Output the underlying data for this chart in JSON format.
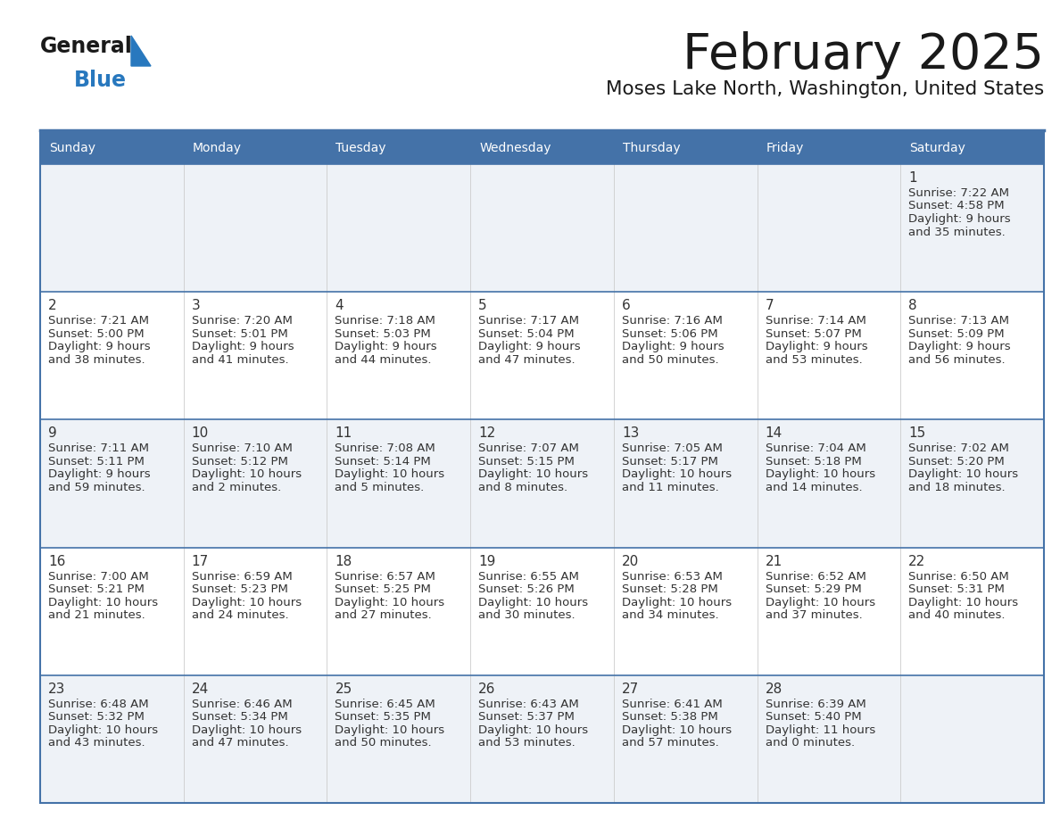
{
  "title": "February 2025",
  "subtitle": "Moses Lake North, Washington, United States",
  "header_bg": "#4472a8",
  "header_text_color": "#ffffff",
  "row_bg_odd": "#eef2f7",
  "row_bg_even": "#ffffff",
  "border_color": "#4472a8",
  "text_color": "#333333",
  "day_number_color": "#333333",
  "days_of_week": [
    "Sunday",
    "Monday",
    "Tuesday",
    "Wednesday",
    "Thursday",
    "Friday",
    "Saturday"
  ],
  "calendar": [
    [
      null,
      null,
      null,
      null,
      null,
      null,
      1
    ],
    [
      2,
      3,
      4,
      5,
      6,
      7,
      8
    ],
    [
      9,
      10,
      11,
      12,
      13,
      14,
      15
    ],
    [
      16,
      17,
      18,
      19,
      20,
      21,
      22
    ],
    [
      23,
      24,
      25,
      26,
      27,
      28,
      null
    ]
  ],
  "day_data": {
    "1": {
      "sunrise": "7:22 AM",
      "sunset": "4:58 PM",
      "daylight_line1": "Daylight: 9 hours",
      "daylight_line2": "and 35 minutes."
    },
    "2": {
      "sunrise": "7:21 AM",
      "sunset": "5:00 PM",
      "daylight_line1": "Daylight: 9 hours",
      "daylight_line2": "and 38 minutes."
    },
    "3": {
      "sunrise": "7:20 AM",
      "sunset": "5:01 PM",
      "daylight_line1": "Daylight: 9 hours",
      "daylight_line2": "and 41 minutes."
    },
    "4": {
      "sunrise": "7:18 AM",
      "sunset": "5:03 PM",
      "daylight_line1": "Daylight: 9 hours",
      "daylight_line2": "and 44 minutes."
    },
    "5": {
      "sunrise": "7:17 AM",
      "sunset": "5:04 PM",
      "daylight_line1": "Daylight: 9 hours",
      "daylight_line2": "and 47 minutes."
    },
    "6": {
      "sunrise": "7:16 AM",
      "sunset": "5:06 PM",
      "daylight_line1": "Daylight: 9 hours",
      "daylight_line2": "and 50 minutes."
    },
    "7": {
      "sunrise": "7:14 AM",
      "sunset": "5:07 PM",
      "daylight_line1": "Daylight: 9 hours",
      "daylight_line2": "and 53 minutes."
    },
    "8": {
      "sunrise": "7:13 AM",
      "sunset": "5:09 PM",
      "daylight_line1": "Daylight: 9 hours",
      "daylight_line2": "and 56 minutes."
    },
    "9": {
      "sunrise": "7:11 AM",
      "sunset": "5:11 PM",
      "daylight_line1": "Daylight: 9 hours",
      "daylight_line2": "and 59 minutes."
    },
    "10": {
      "sunrise": "7:10 AM",
      "sunset": "5:12 PM",
      "daylight_line1": "Daylight: 10 hours",
      "daylight_line2": "and 2 minutes."
    },
    "11": {
      "sunrise": "7:08 AM",
      "sunset": "5:14 PM",
      "daylight_line1": "Daylight: 10 hours",
      "daylight_line2": "and 5 minutes."
    },
    "12": {
      "sunrise": "7:07 AM",
      "sunset": "5:15 PM",
      "daylight_line1": "Daylight: 10 hours",
      "daylight_line2": "and 8 minutes."
    },
    "13": {
      "sunrise": "7:05 AM",
      "sunset": "5:17 PM",
      "daylight_line1": "Daylight: 10 hours",
      "daylight_line2": "and 11 minutes."
    },
    "14": {
      "sunrise": "7:04 AM",
      "sunset": "5:18 PM",
      "daylight_line1": "Daylight: 10 hours",
      "daylight_line2": "and 14 minutes."
    },
    "15": {
      "sunrise": "7:02 AM",
      "sunset": "5:20 PM",
      "daylight_line1": "Daylight: 10 hours",
      "daylight_line2": "and 18 minutes."
    },
    "16": {
      "sunrise": "7:00 AM",
      "sunset": "5:21 PM",
      "daylight_line1": "Daylight: 10 hours",
      "daylight_line2": "and 21 minutes."
    },
    "17": {
      "sunrise": "6:59 AM",
      "sunset": "5:23 PM",
      "daylight_line1": "Daylight: 10 hours",
      "daylight_line2": "and 24 minutes."
    },
    "18": {
      "sunrise": "6:57 AM",
      "sunset": "5:25 PM",
      "daylight_line1": "Daylight: 10 hours",
      "daylight_line2": "and 27 minutes."
    },
    "19": {
      "sunrise": "6:55 AM",
      "sunset": "5:26 PM",
      "daylight_line1": "Daylight: 10 hours",
      "daylight_line2": "and 30 minutes."
    },
    "20": {
      "sunrise": "6:53 AM",
      "sunset": "5:28 PM",
      "daylight_line1": "Daylight: 10 hours",
      "daylight_line2": "and 34 minutes."
    },
    "21": {
      "sunrise": "6:52 AM",
      "sunset": "5:29 PM",
      "daylight_line1": "Daylight: 10 hours",
      "daylight_line2": "and 37 minutes."
    },
    "22": {
      "sunrise": "6:50 AM",
      "sunset": "5:31 PM",
      "daylight_line1": "Daylight: 10 hours",
      "daylight_line2": "and 40 minutes."
    },
    "23": {
      "sunrise": "6:48 AM",
      "sunset": "5:32 PM",
      "daylight_line1": "Daylight: 10 hours",
      "daylight_line2": "and 43 minutes."
    },
    "24": {
      "sunrise": "6:46 AM",
      "sunset": "5:34 PM",
      "daylight_line1": "Daylight: 10 hours",
      "daylight_line2": "and 47 minutes."
    },
    "25": {
      "sunrise": "6:45 AM",
      "sunset": "5:35 PM",
      "daylight_line1": "Daylight: 10 hours",
      "daylight_line2": "and 50 minutes."
    },
    "26": {
      "sunrise": "6:43 AM",
      "sunset": "5:37 PM",
      "daylight_line1": "Daylight: 10 hours",
      "daylight_line2": "and 53 minutes."
    },
    "27": {
      "sunrise": "6:41 AM",
      "sunset": "5:38 PM",
      "daylight_line1": "Daylight: 10 hours",
      "daylight_line2": "and 57 minutes."
    },
    "28": {
      "sunrise": "6:39 AM",
      "sunset": "5:40 PM",
      "daylight_line1": "Daylight: 11 hours",
      "daylight_line2": "and 0 minutes."
    }
  },
  "logo_general_color": "#1a1a1a",
  "logo_blue_color": "#2878be",
  "logo_triangle_color": "#2878be"
}
